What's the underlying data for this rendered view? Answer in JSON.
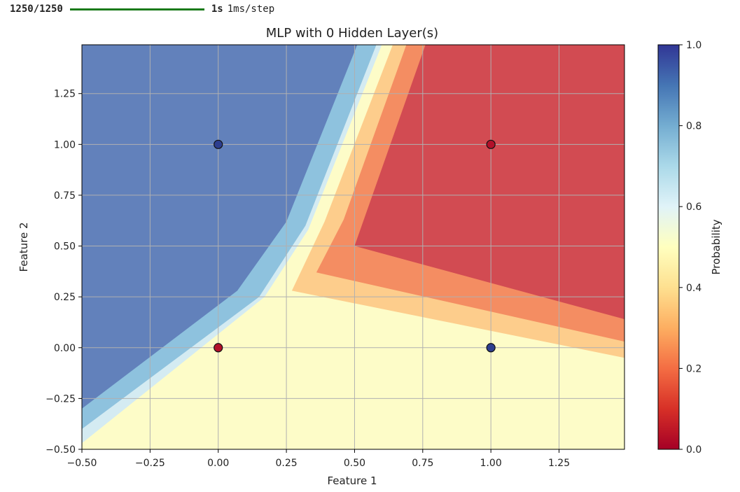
{
  "progress": {
    "count": "1250/1250",
    "fraction": 1.0,
    "time": "1s",
    "rate": "1ms/step",
    "bar_color": "#1a7a1a"
  },
  "chart_data": {
    "type": "contourf",
    "title": "MLP with 0 Hidden Layer(s)",
    "xlabel": "Feature 1",
    "ylabel": "Feature 2",
    "xlim": [
      -0.5,
      1.49
    ],
    "ylim": [
      -0.5,
      1.49
    ],
    "xticks": [
      -0.5,
      -0.25,
      0.0,
      0.25,
      0.5,
      0.75,
      1.0,
      1.25
    ],
    "xtick_labels": [
      "−0.50",
      "−0.25",
      "0.00",
      "0.25",
      "0.50",
      "0.75",
      "1.00",
      "1.25"
    ],
    "yticks": [
      -0.5,
      -0.25,
      0.0,
      0.25,
      0.5,
      0.75,
      1.0,
      1.25
    ],
    "ytick_labels": [
      "−0.50",
      "−0.25",
      "0.00",
      "0.25",
      "0.50",
      "0.75",
      "1.00",
      "1.25"
    ],
    "grid": true,
    "colormap": "RdYlBu",
    "colorbar": {
      "label": "Probability",
      "ticks": [
        0.0,
        0.2,
        0.4,
        0.6,
        0.8,
        1.0
      ],
      "tick_labels": [
        "0.0",
        "0.2",
        "0.4",
        "0.6",
        "0.8",
        "1.0"
      ],
      "stops": [
        {
          "value": 0.0,
          "color": "#a50026"
        },
        {
          "value": 0.1,
          "color": "#d73027"
        },
        {
          "value": 0.2,
          "color": "#f46d43"
        },
        {
          "value": 0.3,
          "color": "#fdae61"
        },
        {
          "value": 0.4,
          "color": "#fee090"
        },
        {
          "value": 0.5,
          "color": "#ffffbf"
        },
        {
          "value": 0.6,
          "color": "#e0f3f8"
        },
        {
          "value": 0.7,
          "color": "#abd9e9"
        },
        {
          "value": 0.8,
          "color": "#74add1"
        },
        {
          "value": 0.9,
          "color": "#4575b4"
        },
        {
          "value": 1.0,
          "color": "#313695"
        }
      ]
    },
    "regions": [
      {
        "level": "high",
        "color": "#6281bb",
        "polygon": [
          [
            -0.5,
            -0.5
          ],
          [
            -0.5,
            1.49
          ],
          [
            1.49,
            1.49
          ],
          [
            1.49,
            -0.5
          ]
        ]
      },
      {
        "level": "p0.8",
        "color": "#8ec2de",
        "polygon": [
          [
            -0.5,
            -0.3
          ],
          [
            0.07,
            0.28
          ],
          [
            0.25,
            0.62
          ],
          [
            0.51,
            1.49
          ],
          [
            1.49,
            1.49
          ],
          [
            1.49,
            -0.5
          ],
          [
            -0.5,
            -0.5
          ]
        ]
      },
      {
        "level": "p0.7",
        "color": "#d4ebf2",
        "polygon": [
          [
            -0.5,
            -0.4
          ],
          [
            0.15,
            0.25
          ],
          [
            0.32,
            0.6
          ],
          [
            0.58,
            1.49
          ],
          [
            1.49,
            1.49
          ],
          [
            1.49,
            -0.5
          ],
          [
            -0.5,
            -0.5
          ]
        ]
      },
      {
        "level": "p0.6",
        "color": "#fdfcc8",
        "polygon": [
          [
            -0.5,
            -0.47
          ],
          [
            0.17,
            0.25
          ],
          [
            0.33,
            0.58
          ],
          [
            0.6,
            1.49
          ],
          [
            1.49,
            1.49
          ],
          [
            1.49,
            -0.5
          ],
          [
            -0.5,
            -0.5
          ]
        ]
      },
      {
        "level": "p0.4",
        "color": "#fdcd8c",
        "polygon": [
          [
            0.27,
            0.28
          ],
          [
            1.49,
            -0.05
          ],
          [
            1.49,
            1.49
          ],
          [
            0.64,
            1.49
          ],
          [
            0.39,
            0.62
          ]
        ]
      },
      {
        "level": "p0.3",
        "color": "#f48d62",
        "polygon": [
          [
            0.36,
            0.37
          ],
          [
            1.49,
            0.03
          ],
          [
            1.49,
            1.49
          ],
          [
            0.69,
            1.49
          ],
          [
            0.46,
            0.63
          ]
        ]
      },
      {
        "level": "low",
        "color": "#d24b52",
        "polygon": [
          [
            0.5,
            0.5
          ],
          [
            1.49,
            0.14
          ],
          [
            1.49,
            1.49
          ],
          [
            0.76,
            1.49
          ]
        ]
      }
    ],
    "points": [
      {
        "x": 0,
        "y": 0,
        "label": 0,
        "color": "#b2102a"
      },
      {
        "x": 0,
        "y": 1,
        "label": 1,
        "color": "#2d3e8f"
      },
      {
        "x": 1,
        "y": 0,
        "label": 1,
        "color": "#2d3e8f"
      },
      {
        "x": 1,
        "y": 1,
        "label": 0,
        "color": "#b2102a"
      }
    ]
  }
}
